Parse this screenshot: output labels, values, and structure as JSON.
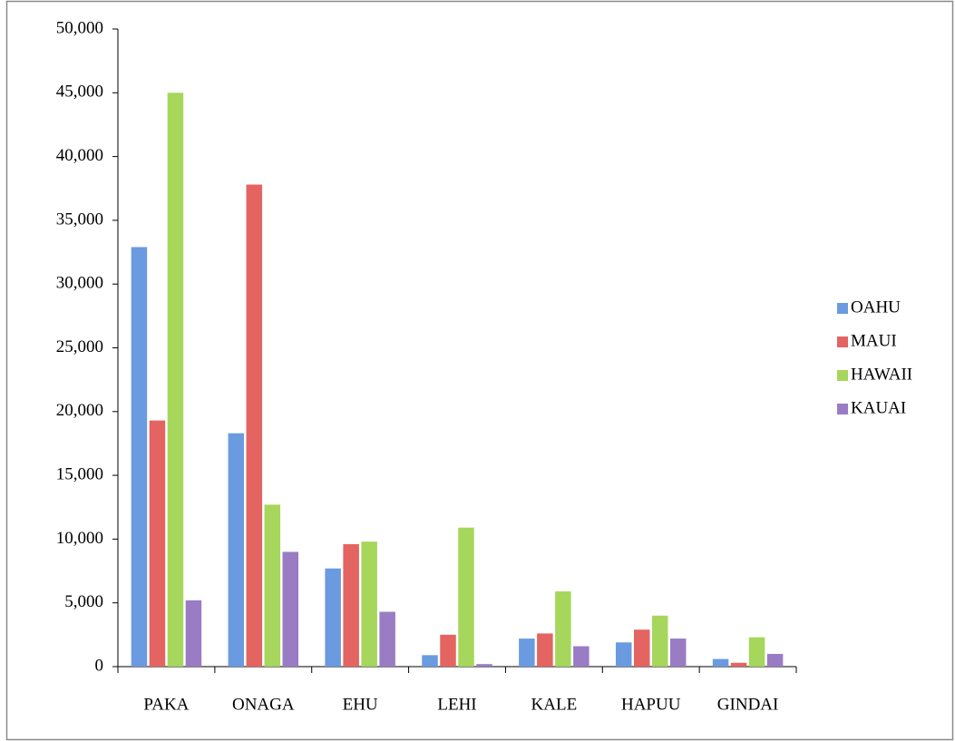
{
  "chart_data": {
    "type": "bar",
    "categories": [
      "PAKA",
      "ONAGA",
      "EHU",
      "LEHI",
      "KALE",
      "HAPUU",
      "GINDAI"
    ],
    "series": [
      {
        "name": "OAHU",
        "color": "#6a9be0",
        "values": [
          32900,
          18300,
          7700,
          900,
          2200,
          1900,
          600
        ]
      },
      {
        "name": "MAUI",
        "color": "#e46462",
        "values": [
          19300,
          37800,
          9600,
          2500,
          2600,
          2900,
          300
        ]
      },
      {
        "name": "HAWAII",
        "color": "#a6d65c",
        "values": [
          45000,
          12700,
          9800,
          10900,
          5900,
          4000,
          2300
        ]
      },
      {
        "name": "KAUAI",
        "color": "#9a7cc4",
        "values": [
          5200,
          9000,
          4300,
          200,
          1600,
          2200,
          1000
        ]
      }
    ],
    "ylim": [
      0,
      50000
    ],
    "yticks": [
      0,
      {
        "value": 5000,
        "label": "5,000"
      },
      {
        "value": 10000,
        "label": "10,000"
      },
      {
        "value": 15000,
        "label": "15,000"
      },
      {
        "value": 20000,
        "label": "20,000"
      },
      {
        "value": 25000,
        "label": "25,000"
      },
      {
        "value": 30000,
        "label": "30,000"
      },
      {
        "value": 35000,
        "label": "35,000"
      },
      {
        "value": 40000,
        "label": "40,000"
      },
      {
        "value": 45000,
        "label": "45,000"
      },
      {
        "value": 50000,
        "label": "50,000"
      }
    ],
    "grid": false,
    "legend": "right"
  }
}
